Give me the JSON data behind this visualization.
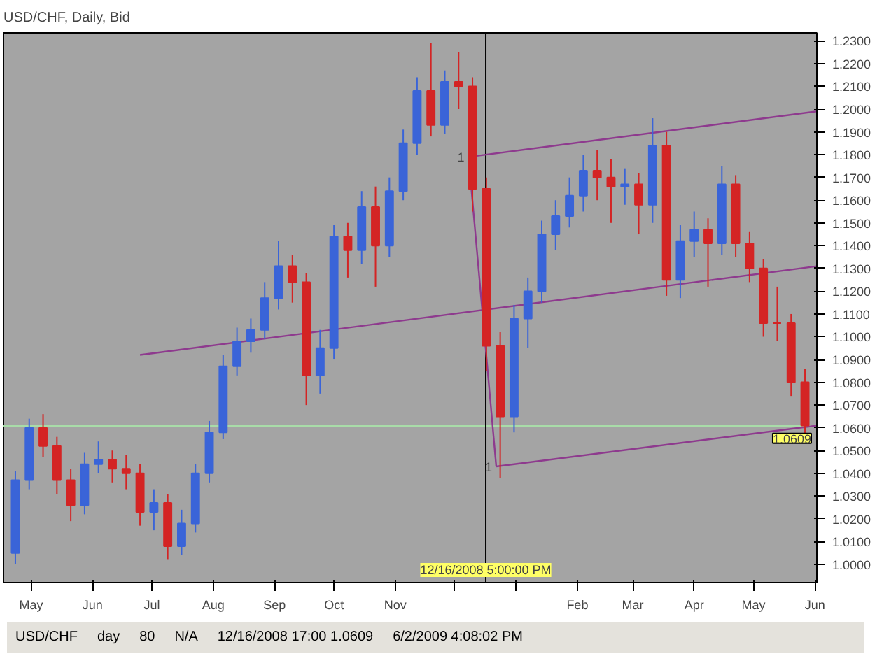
{
  "chart_data": {
    "type": "candlestick",
    "title": "USD/CHF, Daily, Bid",
    "x": [
      "2008-04-23",
      "2008-04-30",
      "2008-05-07",
      "2008-05-14",
      "2008-05-21",
      "2008-05-28",
      "2008-06-04",
      "2008-06-11",
      "2008-06-18",
      "2008-06-25",
      "2008-07-02",
      "2008-07-09",
      "2008-07-16",
      "2008-07-23",
      "2008-07-30",
      "2008-08-06",
      "2008-08-13",
      "2008-08-20",
      "2008-08-27",
      "2008-09-03",
      "2008-09-10",
      "2008-09-17",
      "2008-09-24",
      "2008-10-01",
      "2008-10-08",
      "2008-10-15",
      "2008-10-22",
      "2008-10-29",
      "2008-11-05",
      "2008-11-12",
      "2008-11-19",
      "2008-11-26",
      "2008-12-03",
      "2008-12-10",
      "2008-12-17",
      "2008-12-24",
      "2008-12-31",
      "2009-01-07",
      "2009-01-14",
      "2009-01-21",
      "2009-01-28",
      "2009-02-04",
      "2009-02-11",
      "2009-02-18",
      "2009-02-25",
      "2009-03-04",
      "2009-03-11",
      "2009-03-18",
      "2009-03-25",
      "2009-04-01",
      "2009-04-08",
      "2009-04-15",
      "2009-04-22",
      "2009-04-29",
      "2009-05-06",
      "2009-05-13",
      "2009-05-20",
      "2009-05-27"
    ],
    "ohlc": [
      [
        1.005,
        1.041,
        1.0,
        1.037
      ],
      [
        1.037,
        1.064,
        1.033,
        1.06
      ],
      [
        1.06,
        1.066,
        1.047,
        1.052
      ],
      [
        1.052,
        1.056,
        1.031,
        1.037
      ],
      [
        1.037,
        1.042,
        1.019,
        1.026
      ],
      [
        1.026,
        1.049,
        1.022,
        1.044
      ],
      [
        1.044,
        1.054,
        1.04,
        1.046
      ],
      [
        1.046,
        1.05,
        1.036,
        1.042
      ],
      [
        1.042,
        1.048,
        1.033,
        1.04
      ],
      [
        1.04,
        1.044,
        1.017,
        1.023
      ],
      [
        1.023,
        1.033,
        1.015,
        1.027
      ],
      [
        1.027,
        1.031,
        1.002,
        1.008
      ],
      [
        1.008,
        1.024,
        1.004,
        1.018
      ],
      [
        1.018,
        1.044,
        1.014,
        1.04
      ],
      [
        1.04,
        1.063,
        1.036,
        1.058
      ],
      [
        1.058,
        1.092,
        1.055,
        1.087
      ],
      [
        1.087,
        1.104,
        1.083,
        1.098
      ],
      [
        1.098,
        1.108,
        1.093,
        1.103
      ],
      [
        1.103,
        1.124,
        1.099,
        1.117
      ],
      [
        1.117,
        1.142,
        1.112,
        1.131
      ],
      [
        1.131,
        1.136,
        1.115,
        1.124
      ],
      [
        1.124,
        1.128,
        1.07,
        1.083
      ],
      [
        1.083,
        1.103,
        1.075,
        1.095
      ],
      [
        1.095,
        1.149,
        1.09,
        1.144
      ],
      [
        1.144,
        1.15,
        1.126,
        1.138
      ],
      [
        1.138,
        1.164,
        1.132,
        1.157
      ],
      [
        1.157,
        1.166,
        1.122,
        1.14
      ],
      [
        1.14,
        1.17,
        1.135,
        1.164
      ],
      [
        1.164,
        1.191,
        1.16,
        1.185
      ],
      [
        1.185,
        1.214,
        1.18,
        1.208
      ],
      [
        1.208,
        1.229,
        1.188,
        1.193
      ],
      [
        1.193,
        1.217,
        1.189,
        1.212
      ],
      [
        1.212,
        1.225,
        1.2,
        1.21
      ],
      [
        1.21,
        1.214,
        1.155,
        1.165
      ],
      [
        1.165,
        1.17,
        1.085,
        1.096
      ],
      [
        1.096,
        1.102,
        1.038,
        1.065
      ],
      [
        1.065,
        1.114,
        1.058,
        1.108
      ],
      [
        1.108,
        1.126,
        1.095,
        1.12
      ],
      [
        1.12,
        1.151,
        1.115,
        1.145
      ],
      [
        1.145,
        1.16,
        1.138,
        1.153
      ],
      [
        1.153,
        1.17,
        1.148,
        1.162
      ],
      [
        1.162,
        1.18,
        1.155,
        1.173
      ],
      [
        1.173,
        1.182,
        1.16,
        1.17
      ],
      [
        1.17,
        1.178,
        1.15,
        1.166
      ],
      [
        1.166,
        1.174,
        1.158,
        1.167
      ],
      [
        1.167,
        1.172,
        1.145,
        1.158
      ],
      [
        1.158,
        1.196,
        1.15,
        1.184
      ],
      [
        1.184,
        1.19,
        1.118,
        1.125
      ],
      [
        1.125,
        1.149,
        1.117,
        1.142
      ],
      [
        1.142,
        1.155,
        1.135,
        1.147
      ],
      [
        1.147,
        1.152,
        1.122,
        1.141
      ],
      [
        1.141,
        1.175,
        1.136,
        1.167
      ],
      [
        1.167,
        1.171,
        1.135,
        1.141
      ],
      [
        1.141,
        1.146,
        1.124,
        1.13
      ],
      [
        1.13,
        1.134,
        1.1,
        1.106
      ],
      [
        1.106,
        1.122,
        1.098,
        1.106
      ],
      [
        1.106,
        1.11,
        1.074,
        1.08
      ],
      [
        1.08,
        1.086,
        1.057,
        1.061
      ]
    ],
    "colors": [
      "#3a64d8",
      "#3a64d8",
      "#d42424",
      "#d42424",
      "#d42424",
      "#3a64d8",
      "#3a64d8",
      "#d42424",
      "#d42424",
      "#d42424",
      "#3a64d8",
      "#d42424",
      "#3a64d8",
      "#3a64d8",
      "#3a64d8",
      "#3a64d8",
      "#3a64d8",
      "#3a64d8",
      "#3a64d8",
      "#3a64d8",
      "#d42424",
      "#d42424",
      "#3a64d8",
      "#3a64d8",
      "#d42424",
      "#3a64d8",
      "#d42424",
      "#3a64d8",
      "#3a64d8",
      "#3a64d8",
      "#d42424",
      "#3a64d8",
      "#d42424",
      "#d42424",
      "#d42424",
      "#d42424",
      "#3a64d8",
      "#3a64d8",
      "#3a64d8",
      "#3a64d8",
      "#3a64d8",
      "#3a64d8",
      "#d42424",
      "#d42424",
      "#3a64d8",
      "#d42424",
      "#3a64d8",
      "#d42424",
      "#3a64d8",
      "#3a64d8",
      "#d42424",
      "#3a64d8",
      "#d42424",
      "#d42424",
      "#d42424",
      "#d42424",
      "#d42424",
      "#d42424"
    ],
    "series": [
      {
        "type": "line",
        "color": "#8e3a8e",
        "x": [
          "2008-12-08",
          "2009-06-02"
        ],
        "values": [
          1.179,
          1.199
        ]
      },
      {
        "type": "line",
        "color": "#8e3a8e",
        "x": [
          "2008-06-25",
          "2009-06-02"
        ],
        "values": [
          1.092,
          1.131
        ]
      },
      {
        "type": "line",
        "color": "#8e3a8e",
        "x": [
          "2008-12-22",
          "2009-06-02"
        ],
        "values": [
          1.043,
          1.061
        ]
      },
      {
        "type": "line",
        "color": "#8e3a8e",
        "x": [
          "2008-12-08",
          "2008-12-22"
        ],
        "values": [
          1.179,
          1.043
        ]
      }
    ],
    "xlim": [
      "2008-04-17",
      "2009-06-02"
    ],
    "xticks": [
      {
        "value": "2008-05-01",
        "label": "May"
      },
      {
        "value": "2008-06-01",
        "label": "Jun"
      },
      {
        "value": "2008-07-01",
        "label": "Jul"
      },
      {
        "value": "2008-08-01",
        "label": "Aug"
      },
      {
        "value": "2008-09-01",
        "label": "Sep"
      },
      {
        "value": "2008-10-01",
        "label": "Oct"
      },
      {
        "value": "2008-11-01",
        "label": "Nov"
      },
      {
        "value": "2008-12-01",
        "label": null
      },
      {
        "value": "2009-01-01",
        "label": null
      },
      {
        "value": "2009-02-01",
        "label": "Feb"
      },
      {
        "value": "2009-03-01",
        "label": "Mar"
      },
      {
        "value": "2009-04-01",
        "label": "Apr"
      },
      {
        "value": "2009-05-01",
        "label": "May"
      },
      {
        "value": "2009-06-01",
        "label": "Jun"
      }
    ],
    "ylim": [
      0.992,
      1.2335
    ],
    "yticks": [
      {
        "value": 1.0,
        "label": "1.0000"
      },
      {
        "value": 1.01,
        "label": "1.0100"
      },
      {
        "value": 1.02,
        "label": "1.0200"
      },
      {
        "value": 1.03,
        "label": "1.0300"
      },
      {
        "value": 1.04,
        "label": "1.0400"
      },
      {
        "value": 1.05,
        "label": "1.0500"
      },
      {
        "value": 1.06,
        "label": "1.0600"
      },
      {
        "value": 1.07,
        "label": "1.0700"
      },
      {
        "value": 1.08,
        "label": "1.0800"
      },
      {
        "value": 1.09,
        "label": "1.0900"
      },
      {
        "value": 1.1,
        "label": "1.1000"
      },
      {
        "value": 1.11,
        "label": "1.1100"
      },
      {
        "value": 1.12,
        "label": "1.1200"
      },
      {
        "value": 1.13,
        "label": "1.1300"
      },
      {
        "value": 1.14,
        "label": "1.1400"
      },
      {
        "value": 1.15,
        "label": "1.1500"
      },
      {
        "value": 1.16,
        "label": "1.1600"
      },
      {
        "value": 1.17,
        "label": "1.1700"
      },
      {
        "value": 1.18,
        "label": "1.1800"
      },
      {
        "value": 1.19,
        "label": "1.1900"
      },
      {
        "value": 1.2,
        "label": "1.2000"
      },
      {
        "value": 1.21,
        "label": "1.2100"
      },
      {
        "value": 1.22,
        "label": "1.2200"
      },
      {
        "value": 1.23,
        "label": "1.2300"
      }
    ],
    "ref_lines": [
      {
        "axis": "y",
        "value": 1.0609,
        "label": "1.0609",
        "color": "#a8dca8"
      },
      {
        "axis": "x",
        "value": "2008-12-16T17:00",
        "label": "12/16/2008 5:00:00 PM",
        "color": "#000000"
      }
    ],
    "annotations": [
      {
        "text": "1",
        "x": "2008-12-08",
        "y": 1.179
      },
      {
        "text": "1",
        "x": "2008-12-22",
        "y": 1.043
      },
      "USD/CHF",
      "day",
      "80",
      "N/A",
      "12/16/2008 17:00  1.0609",
      "6/2/2009 4:08:02 PM"
    ]
  }
}
